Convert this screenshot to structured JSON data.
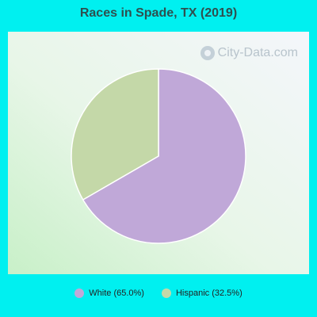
{
  "chart_data": {
    "type": "pie",
    "title": "Races in Spade, TX (2019)",
    "slices": [
      {
        "label": "White (65.0%)",
        "value": 65.0,
        "color": "#c0a8d8"
      },
      {
        "label": "Hispanic (32.5%)",
        "value": 32.5,
        "color": "#c4d8a8"
      }
    ],
    "legend_position": "bottom"
  },
  "watermark": {
    "text": "City-Data.com"
  }
}
